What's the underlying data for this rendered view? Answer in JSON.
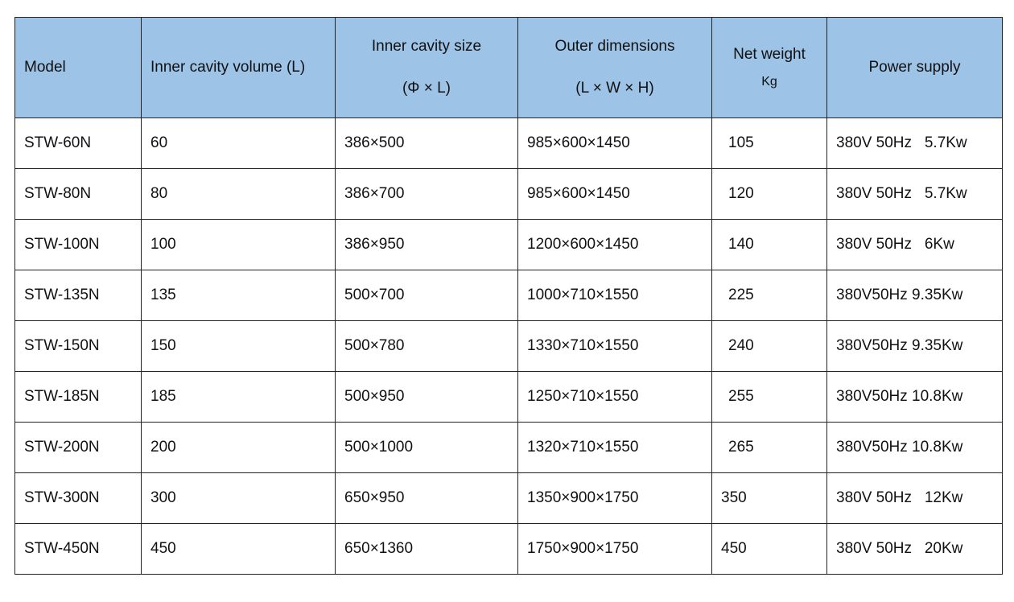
{
  "header_color": "#9dc3e6",
  "columns": [
    {
      "label": "Model"
    },
    {
      "label": "Inner cavity volume (L)"
    },
    {
      "label": "Inner cavity size",
      "sub": "(Φ × L)"
    },
    {
      "label": "Outer dimensions",
      "sub": "(L × W × H)"
    },
    {
      "label": "Net weight",
      "sub": "Kg"
    },
    {
      "label": "Power supply"
    }
  ],
  "rows": [
    [
      "STW-60N",
      "60",
      "386×500",
      "985×600×1450",
      "105",
      "380V 50Hz   5.7Kw"
    ],
    [
      "STW-80N",
      "80",
      "386×700",
      "985×600×1450",
      "120",
      "380V 50Hz   5.7Kw"
    ],
    [
      "STW-100N",
      "100",
      "386×950",
      "1200×600×1450",
      "140",
      "380V 50Hz   6Kw"
    ],
    [
      "STW-135N",
      "135",
      "500×700",
      "1000×710×1550",
      "225",
      "380V50Hz 9.35Kw"
    ],
    [
      "STW-150N",
      "150",
      "500×780",
      "1330×710×1550",
      "240",
      "380V50Hz 9.35Kw"
    ],
    [
      "STW-185N",
      "185",
      "500×950",
      "1250×710×1550",
      "255",
      "380V50Hz 10.8Kw"
    ],
    [
      "STW-200N",
      "200",
      "500×1000",
      "1320×710×1550",
      "265",
      "380V50Hz 10.8Kw"
    ],
    [
      "STW-300N",
      "300",
      "650×950",
      "1350×900×1750",
      "350",
      "380V 50Hz   12Kw"
    ],
    [
      "STW-450N",
      "450",
      "650×1360",
      "1750×900×1750",
      "450",
      "380V 50Hz   20Kw"
    ]
  ]
}
